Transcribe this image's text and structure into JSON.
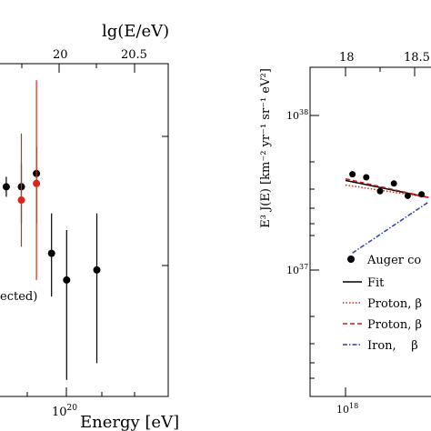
{
  "chart_data": [
    {
      "type": "scatter",
      "title": "",
      "x_axis_top_label": "lg(E/eV)",
      "x_axis_top_ticks": [
        "20",
        "20.5"
      ],
      "xlabel": "Energy [eV]",
      "x_axis_bottom_ticks": [
        "10^20"
      ],
      "ylabel": "",
      "annotation_fragment": "ected)",
      "series": [
        {
          "color": "#000000",
          "points": [
            {
              "lgE": 19.65,
              "ylo": 0.6,
              "yhi": 0.66,
              "y": 0.63
            },
            {
              "lgE": 19.75,
              "ylo": 0.52,
              "yhi": 0.7,
              "y": 0.63
            },
            {
              "lgE": 19.85,
              "ylo": 0.52,
              "yhi": 0.75,
              "y": 0.67
            },
            {
              "lgE": 19.95,
              "ylo": 0.3,
              "yhi": 0.55,
              "y": 0.43
            },
            {
              "lgE": 20.05,
              "ylo": 0.05,
              "yhi": 0.5,
              "y": 0.35
            },
            {
              "lgE": 20.25,
              "ylo": 0.1,
              "yhi": 0.55,
              "y": 0.38
            }
          ]
        },
        {
          "color": "#d62718",
          "points": [
            {
              "lgE": 19.75,
              "ylo": 0.45,
              "yhi": 0.79,
              "y": 0.59
            },
            {
              "lgE": 19.85,
              "ylo": 0.35,
              "yhi": 0.95,
              "y": 0.64
            }
          ]
        }
      ]
    },
    {
      "type": "line",
      "title": "",
      "x_axis_top_ticks": [
        "18",
        "18.5"
      ],
      "x_axis_bottom_ticks": [
        "10^18"
      ],
      "ylabel": "E³ J(E) [km⁻² yr⁻¹ sr⁻¹ eV²]",
      "y_ticks": [
        "10^38",
        "10^37"
      ],
      "y_scale": "log",
      "legend_position": "bottom-right",
      "legend": [
        {
          "label": "Auger co",
          "style": "marker",
          "color": "#000000"
        },
        {
          "label": "Fit",
          "style": "solid",
          "color": "#000000"
        },
        {
          "label": "Proton, β",
          "style": "dotted",
          "color": "#d62718"
        },
        {
          "label": "Proton, β",
          "style": "dashed",
          "color": "#c81e14"
        },
        {
          "label": "Iron,    β",
          "style": "dashdot",
          "color": "#2b3fb0"
        }
      ],
      "data_points": [
        {
          "lgE": 18.05,
          "lgY": 37.62
        },
        {
          "lgE": 18.15,
          "lgY": 37.6
        },
        {
          "lgE": 18.25,
          "lgY": 37.51
        },
        {
          "lgE": 18.35,
          "lgY": 37.56
        },
        {
          "lgE": 18.45,
          "lgY": 37.48
        },
        {
          "lgE": 18.55,
          "lgY": 37.49
        }
      ],
      "fit_line": [
        {
          "lgE": 18.0,
          "lgY": 37.58
        },
        {
          "lgE": 18.6,
          "lgY": 37.47
        }
      ],
      "proton_dotted": [
        {
          "lgE": 18.0,
          "lgY": 37.55
        },
        {
          "lgE": 18.6,
          "lgY": 37.47
        }
      ],
      "proton_dashed": [
        {
          "lgE": 18.0,
          "lgY": 37.59
        },
        {
          "lgE": 18.6,
          "lgY": 37.47
        }
      ],
      "iron_dashdot": [
        {
          "lgE": 18.05,
          "lgY": 37.11
        },
        {
          "lgE": 18.6,
          "lgY": 37.44
        }
      ]
    }
  ]
}
